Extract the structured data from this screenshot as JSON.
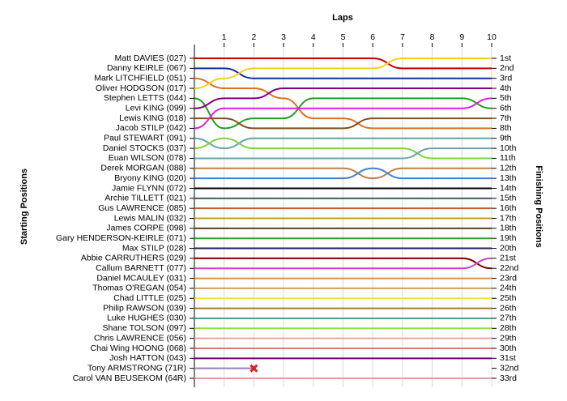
{
  "chart_data": {
    "type": "lap",
    "title": "Laps",
    "ylabel": "Starting Positions",
    "y2label": "Finishing Positions",
    "x": [
      0,
      1,
      2,
      3,
      4,
      5,
      6,
      7,
      8,
      9,
      10
    ],
    "xlim": [
      0,
      10
    ],
    "xticks": [
      1,
      2,
      3,
      4,
      5,
      6,
      7,
      8,
      9,
      10
    ],
    "ylim": [
      1,
      33
    ],
    "y_inverted": true,
    "grid": true,
    "y2ticks": [
      {
        "value": 1,
        "label": "1st"
      },
      {
        "value": 2,
        "label": "2nd"
      },
      {
        "value": 3,
        "label": "3rd"
      },
      {
        "value": 4,
        "label": "4th"
      },
      {
        "value": 5,
        "label": "5th"
      },
      {
        "value": 6,
        "label": "6th"
      },
      {
        "value": 7,
        "label": "7th"
      },
      {
        "value": 8,
        "label": "8th"
      },
      {
        "value": 9,
        "label": "9th"
      },
      {
        "value": 10,
        "label": "10th"
      },
      {
        "value": 11,
        "label": "11th"
      },
      {
        "value": 12,
        "label": "12th"
      },
      {
        "value": 13,
        "label": "13th"
      },
      {
        "value": 14,
        "label": "14th"
      },
      {
        "value": 15,
        "label": "15th"
      },
      {
        "value": 16,
        "label": "16th"
      },
      {
        "value": 17,
        "label": "17th"
      },
      {
        "value": 18,
        "label": "18th"
      },
      {
        "value": 19,
        "label": "19th"
      },
      {
        "value": 20,
        "label": "20th"
      },
      {
        "value": 21,
        "label": "21st"
      },
      {
        "value": 22,
        "label": "22nd"
      },
      {
        "value": 23,
        "label": "23rd"
      },
      {
        "value": 24,
        "label": "24th"
      },
      {
        "value": 25,
        "label": "25th"
      },
      {
        "value": 26,
        "label": "26th"
      },
      {
        "value": 27,
        "label": "27th"
      },
      {
        "value": 28,
        "label": "28th"
      },
      {
        "value": 29,
        "label": "29th"
      },
      {
        "value": 30,
        "label": "30th"
      },
      {
        "value": 31,
        "label": "31st"
      },
      {
        "value": 32,
        "label": "32nd"
      },
      {
        "value": 33,
        "label": "33rd"
      }
    ],
    "series": [
      {
        "name": "Matt DAVIES (027)",
        "color": "#c00000",
        "values": [
          1,
          1,
          1,
          1,
          1,
          1,
          1,
          2,
          2,
          2,
          2
        ]
      },
      {
        "name": "Danny KEIRLE (067)",
        "color": "#1030a0",
        "values": [
          2,
          2,
          3,
          3,
          3,
          3,
          3,
          3,
          3,
          3,
          3
        ]
      },
      {
        "name": "Mark LITCHFIELD (051)",
        "color": "#e07020",
        "values": [
          3,
          4,
          4,
          5,
          7,
          7,
          8,
          8,
          8,
          8,
          8
        ]
      },
      {
        "name": "Oliver HODGSON (017)",
        "color": "#f0d020",
        "values": [
          4,
          3,
          2,
          2,
          2,
          2,
          2,
          1,
          1,
          1,
          1
        ]
      },
      {
        "name": "Stephen LETTS (044)",
        "color": "#20a020",
        "values": [
          5,
          8,
          7,
          7,
          5,
          5,
          5,
          5,
          5,
          5,
          6
        ]
      },
      {
        "name": "Levi KING (099)",
        "color": "#800080",
        "values": [
          6,
          5,
          5,
          4,
          4,
          4,
          4,
          4,
          4,
          4,
          4
        ]
      },
      {
        "name": "Lewis KING (018)",
        "color": "#805020",
        "values": [
          7,
          7,
          8,
          8,
          8,
          8,
          7,
          7,
          7,
          7,
          7
        ]
      },
      {
        "name": "Jacob STILP (042)",
        "color": "#e020e0",
        "values": [
          8,
          6,
          6,
          6,
          6,
          6,
          6,
          6,
          6,
          6,
          5
        ]
      },
      {
        "name": "Paul STEWART (091)",
        "color": "#5fa8a0",
        "values": [
          9,
          10,
          9,
          9,
          9,
          9,
          9,
          9,
          9,
          9,
          9
        ]
      },
      {
        "name": "Daniel STOCKS (037)",
        "color": "#80d040",
        "values": [
          10,
          9,
          10,
          10,
          10,
          10,
          10,
          10,
          11,
          11,
          11
        ]
      },
      {
        "name": "Euan WILSON (078)",
        "color": "#70a0b0",
        "values": [
          11,
          11,
          11,
          11,
          11,
          11,
          11,
          11,
          10,
          10,
          10
        ]
      },
      {
        "name": "Derek MORGAN (088)",
        "color": "#c08040",
        "values": [
          12,
          12,
          12,
          12,
          12,
          12,
          13,
          12,
          12,
          12,
          12
        ]
      },
      {
        "name": "Bryony KING (020)",
        "color": "#4080d0",
        "values": [
          13,
          13,
          13,
          13,
          13,
          13,
          12,
          13,
          13,
          13,
          13
        ]
      },
      {
        "name": "Jamie FLYNN (072)",
        "color": "#000000",
        "values": [
          14,
          14,
          14,
          14,
          14,
          14,
          14,
          14,
          14,
          14,
          14
        ]
      },
      {
        "name": "Archie TILLETT (021)",
        "color": "#406060",
        "values": [
          15,
          15,
          15,
          15,
          15,
          15,
          15,
          15,
          15,
          15,
          15
        ]
      },
      {
        "name": "Gus LAWRENCE (085)",
        "color": "#c06030",
        "values": [
          16,
          16,
          16,
          16,
          16,
          16,
          16,
          16,
          16,
          16,
          16
        ]
      },
      {
        "name": "Lewis MALIN (032)",
        "color": "#c0a020",
        "values": [
          17,
          17,
          17,
          17,
          17,
          17,
          17,
          17,
          17,
          17,
          17
        ]
      },
      {
        "name": "James CORPE (098)",
        "color": "#604020",
        "values": [
          18,
          18,
          18,
          18,
          18,
          18,
          18,
          18,
          18,
          18,
          18
        ]
      },
      {
        "name": "Gary HENDERSON-KEIRLE (071)",
        "color": "#30a030",
        "values": [
          19,
          19,
          19,
          19,
          19,
          19,
          19,
          19,
          19,
          19,
          19
        ]
      },
      {
        "name": "Max STILP (028)",
        "color": "#202060",
        "values": [
          20,
          20,
          20,
          20,
          20,
          20,
          20,
          20,
          20,
          20,
          20
        ]
      },
      {
        "name": "Abbie CARRUTHERS (029)",
        "color": "#800000",
        "values": [
          21,
          21,
          21,
          21,
          21,
          21,
          21,
          21,
          21,
          21,
          22
        ]
      },
      {
        "name": "Callum BARNETT (077)",
        "color": "#d040d0",
        "values": [
          22,
          22,
          22,
          22,
          22,
          22,
          22,
          22,
          22,
          22,
          21
        ]
      },
      {
        "name": "Daniel MCAULEY (031)",
        "color": "#e09040",
        "values": [
          23,
          23,
          23,
          23,
          23,
          23,
          23,
          23,
          23,
          23,
          23
        ]
      },
      {
        "name": "Thomas O'REGAN (054)",
        "color": "#d0a060",
        "values": [
          24,
          24,
          24,
          24,
          24,
          24,
          24,
          24,
          24,
          24,
          24
        ]
      },
      {
        "name": "Chad LITTLE (025)",
        "color": "#f0e040",
        "values": [
          25,
          25,
          25,
          25,
          25,
          25,
          25,
          25,
          25,
          25,
          25
        ]
      },
      {
        "name": "Philip RAWSON (039)",
        "color": "#a08020",
        "values": [
          26,
          26,
          26,
          26,
          26,
          26,
          26,
          26,
          26,
          26,
          26
        ]
      },
      {
        "name": "Luke HUGHES (030)",
        "color": "#50a090",
        "values": [
          27,
          27,
          27,
          27,
          27,
          27,
          27,
          27,
          27,
          27,
          27
        ]
      },
      {
        "name": "Shane TOLSON (097)",
        "color": "#90e040",
        "values": [
          28,
          28,
          28,
          28,
          28,
          28,
          28,
          28,
          28,
          28,
          28
        ]
      },
      {
        "name": "Chris LAWRENCE (056)",
        "color": "#f0a0a0",
        "values": [
          29,
          29,
          29,
          29,
          29,
          29,
          29,
          29,
          29,
          29,
          29
        ]
      },
      {
        "name": "Chai Wing HOONG (068)",
        "color": "#d08070",
        "values": [
          30,
          30,
          30,
          30,
          30,
          30,
          30,
          30,
          30,
          30,
          30
        ]
      },
      {
        "name": "Josh HATTON (043)",
        "color": "#700070",
        "values": [
          31,
          31,
          31,
          31,
          31,
          31,
          31,
          31,
          31,
          31,
          31
        ]
      },
      {
        "name": "Tony ARMSTRONG (71R)",
        "color": "#9080c0",
        "values": [
          32,
          32,
          32,
          null,
          null,
          null,
          null,
          null,
          null,
          null,
          null
        ]
      },
      {
        "name": "Carol VAN BEUSEKOM (64R)",
        "color": "#e0a0a0",
        "values": [
          33,
          33,
          33,
          33,
          33,
          33,
          33,
          33,
          33,
          33,
          33
        ]
      }
    ]
  }
}
